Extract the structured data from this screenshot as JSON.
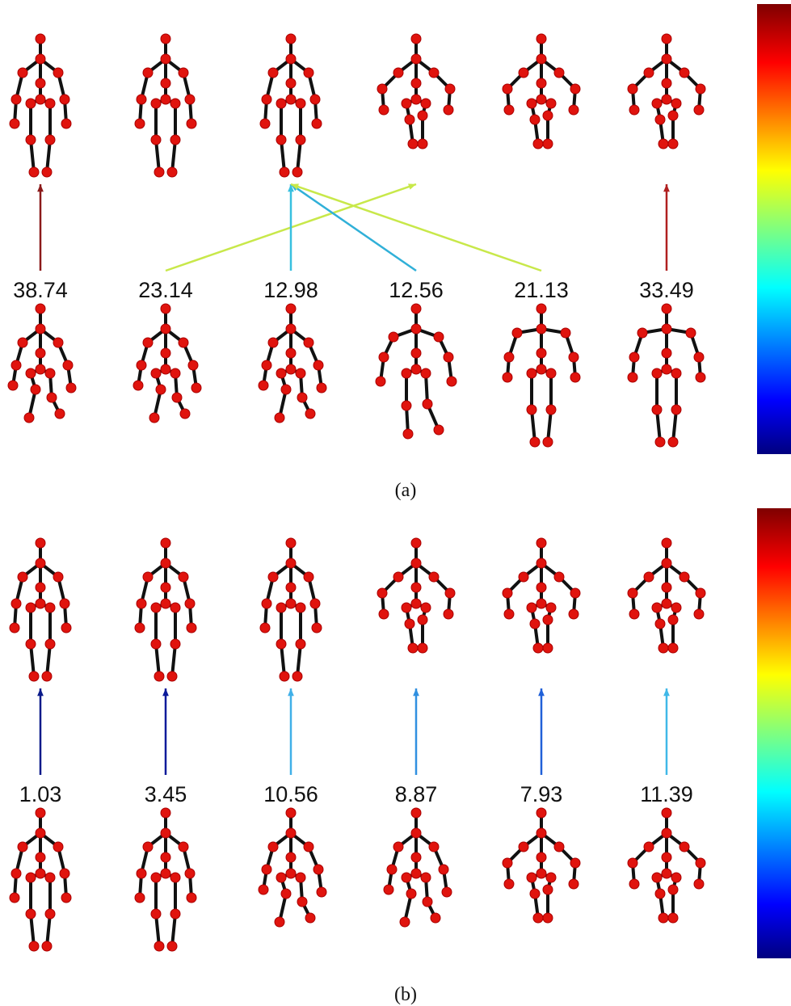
{
  "panels": [
    {
      "caption": "(a)",
      "labels": [
        38.74,
        23.14,
        12.98,
        12.56,
        21.13,
        33.49
      ],
      "arrow_colors": [
        "#8b1a1a",
        "#c8e84a",
        "#38c0e0",
        "#30b0d8",
        "#c8e84a",
        "#b02020"
      ]
    },
    {
      "caption": "(b)",
      "labels": [
        1.03,
        3.45,
        10.56,
        8.87,
        7.93,
        11.39
      ],
      "arrow_colors": [
        "#0a1a8a",
        "#0a1a9a",
        "#40b0e8",
        "#3090e0",
        "#2060d8",
        "#40b8e8"
      ]
    }
  ]
}
